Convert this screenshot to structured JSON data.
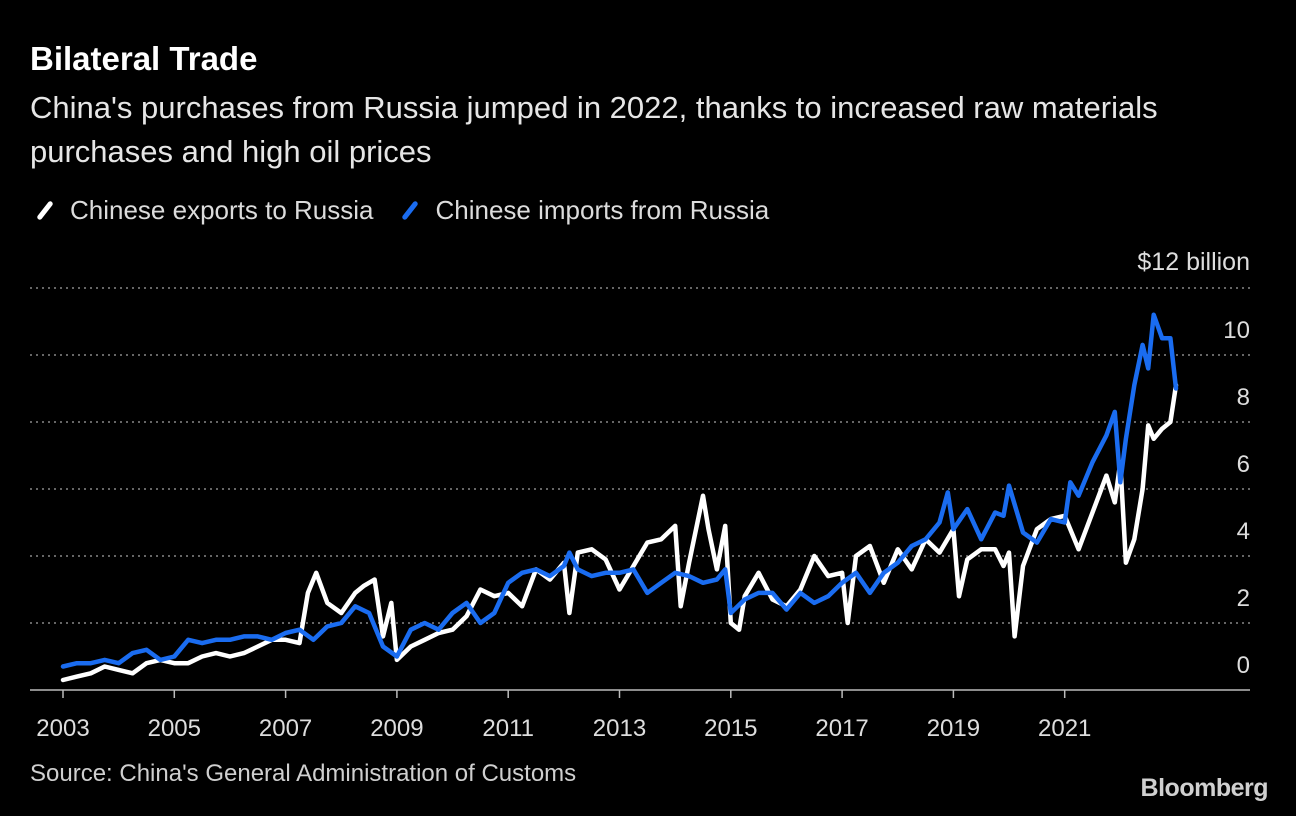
{
  "header": {
    "title": "Bilateral Trade",
    "subtitle": "China's purchases from Russia jumped in 2022, thanks to increased raw materials purchases and high oil prices"
  },
  "footer": {
    "source": "Source: China's General Administration of Customs",
    "brand": "Bloomberg"
  },
  "colors": {
    "background": "#000000",
    "exports": "#ffffff",
    "imports": "#1a6cf0",
    "grid": "#888888"
  },
  "chart_data": {
    "type": "line",
    "title": "Bilateral Trade",
    "ylabel": "$12 billion",
    "xlim": [
      2003,
      2023
    ],
    "ylim": [
      0,
      12
    ],
    "y_ticks": [
      0,
      2,
      4,
      6,
      8,
      10
    ],
    "y_tick_labels": [
      "0",
      "2",
      "4",
      "6",
      "8",
      "10"
    ],
    "y_top_label": "$12 billion",
    "x_ticks": [
      2003,
      2005,
      2007,
      2009,
      2011,
      2013,
      2015,
      2017,
      2019,
      2021
    ],
    "x_tick_labels": [
      "2003",
      "2005",
      "2007",
      "2009",
      "2011",
      "2013",
      "2015",
      "2017",
      "2019",
      "2021"
    ],
    "grid": true,
    "legend_position": "top-left",
    "series": [
      {
        "name": "Chinese exports to Russia",
        "color": "#ffffff",
        "x": [
          2003.0,
          2003.25,
          2003.5,
          2003.75,
          2004.0,
          2004.25,
          2004.5,
          2004.75,
          2005.0,
          2005.25,
          2005.5,
          2005.75,
          2006.0,
          2006.25,
          2006.5,
          2006.75,
          2007.0,
          2007.25,
          2007.4,
          2007.55,
          2007.75,
          2008.0,
          2008.25,
          2008.4,
          2008.6,
          2008.75,
          2008.9,
          2009.0,
          2009.25,
          2009.5,
          2009.75,
          2010.0,
          2010.25,
          2010.5,
          2010.75,
          2011.0,
          2011.25,
          2011.5,
          2011.75,
          2012.0,
          2012.1,
          2012.25,
          2012.5,
          2012.75,
          2013.0,
          2013.25,
          2013.5,
          2013.75,
          2014.0,
          2014.1,
          2014.25,
          2014.5,
          2014.6,
          2014.75,
          2014.9,
          2015.0,
          2015.15,
          2015.25,
          2015.5,
          2015.75,
          2016.0,
          2016.25,
          2016.5,
          2016.75,
          2017.0,
          2017.1,
          2017.25,
          2017.5,
          2017.75,
          2018.0,
          2018.25,
          2018.5,
          2018.75,
          2019.0,
          2019.1,
          2019.25,
          2019.5,
          2019.75,
          2019.9,
          2020.0,
          2020.1,
          2020.25,
          2020.5,
          2020.75,
          2021.0,
          2021.25,
          2021.5,
          2021.75,
          2021.9,
          2022.0,
          2022.1,
          2022.25,
          2022.4,
          2022.5,
          2022.6,
          2022.75,
          2022.9,
          2023.0
        ],
        "values": [
          0.3,
          0.4,
          0.5,
          0.7,
          0.6,
          0.5,
          0.8,
          0.9,
          0.8,
          0.8,
          1.0,
          1.1,
          1.0,
          1.1,
          1.3,
          1.5,
          1.5,
          1.4,
          2.9,
          3.5,
          2.6,
          2.3,
          2.9,
          3.1,
          3.3,
          1.6,
          2.6,
          0.9,
          1.3,
          1.5,
          1.7,
          1.8,
          2.2,
          3.0,
          2.8,
          2.9,
          2.5,
          3.6,
          3.3,
          3.8,
          2.3,
          4.1,
          4.2,
          3.9,
          3.0,
          3.7,
          4.4,
          4.5,
          4.9,
          2.5,
          3.8,
          5.8,
          4.8,
          3.6,
          4.9,
          2.0,
          1.8,
          2.8,
          3.5,
          2.7,
          2.5,
          3.0,
          4.0,
          3.4,
          3.5,
          2.0,
          4.0,
          4.3,
          3.2,
          4.2,
          3.6,
          4.5,
          4.1,
          4.8,
          2.8,
          3.9,
          4.2,
          4.2,
          3.7,
          4.1,
          1.6,
          3.7,
          4.8,
          5.1,
          5.2,
          4.2,
          5.3,
          6.4,
          5.6,
          6.8,
          3.8,
          4.5,
          6.0,
          7.9,
          7.5,
          7.8,
          8.0,
          9.1
        ]
      },
      {
        "name": "Chinese imports from Russia",
        "color": "#1a6cf0",
        "x": [
          2003.0,
          2003.25,
          2003.5,
          2003.75,
          2004.0,
          2004.25,
          2004.5,
          2004.75,
          2005.0,
          2005.25,
          2005.5,
          2005.75,
          2006.0,
          2006.25,
          2006.5,
          2006.75,
          2007.0,
          2007.25,
          2007.5,
          2007.75,
          2008.0,
          2008.25,
          2008.5,
          2008.75,
          2009.0,
          2009.25,
          2009.5,
          2009.75,
          2010.0,
          2010.25,
          2010.5,
          2010.75,
          2011.0,
          2011.25,
          2011.5,
          2011.75,
          2012.0,
          2012.1,
          2012.25,
          2012.5,
          2012.75,
          2013.0,
          2013.25,
          2013.5,
          2013.75,
          2014.0,
          2014.25,
          2014.5,
          2014.75,
          2014.9,
          2015.0,
          2015.25,
          2015.5,
          2015.75,
          2016.0,
          2016.25,
          2016.5,
          2016.75,
          2017.0,
          2017.25,
          2017.5,
          2017.75,
          2018.0,
          2018.25,
          2018.5,
          2018.75,
          2018.9,
          2019.0,
          2019.25,
          2019.5,
          2019.75,
          2019.9,
          2020.0,
          2020.25,
          2020.5,
          2020.75,
          2021.0,
          2021.1,
          2021.25,
          2021.5,
          2021.75,
          2021.9,
          2022.0,
          2022.1,
          2022.25,
          2022.4,
          2022.5,
          2022.6,
          2022.75,
          2022.9,
          2023.0
        ],
        "values": [
          0.7,
          0.8,
          0.8,
          0.9,
          0.8,
          1.1,
          1.2,
          0.9,
          1.0,
          1.5,
          1.4,
          1.5,
          1.5,
          1.6,
          1.6,
          1.5,
          1.7,
          1.8,
          1.5,
          1.9,
          2.0,
          2.5,
          2.3,
          1.3,
          1.0,
          1.8,
          2.0,
          1.8,
          2.3,
          2.6,
          2.0,
          2.3,
          3.2,
          3.5,
          3.6,
          3.4,
          3.7,
          4.1,
          3.6,
          3.4,
          3.5,
          3.5,
          3.6,
          2.9,
          3.2,
          3.5,
          3.4,
          3.2,
          3.3,
          3.6,
          2.3,
          2.7,
          2.9,
          2.9,
          2.4,
          2.9,
          2.6,
          2.8,
          3.2,
          3.5,
          2.9,
          3.5,
          3.8,
          4.3,
          4.5,
          5.0,
          5.9,
          4.8,
          5.4,
          4.5,
          5.3,
          5.2,
          6.1,
          4.7,
          4.4,
          5.1,
          5.0,
          6.2,
          5.8,
          6.8,
          7.6,
          8.3,
          6.2,
          7.5,
          9.1,
          10.3,
          9.6,
          11.2,
          10.5,
          10.5,
          9.0
        ]
      }
    ]
  }
}
